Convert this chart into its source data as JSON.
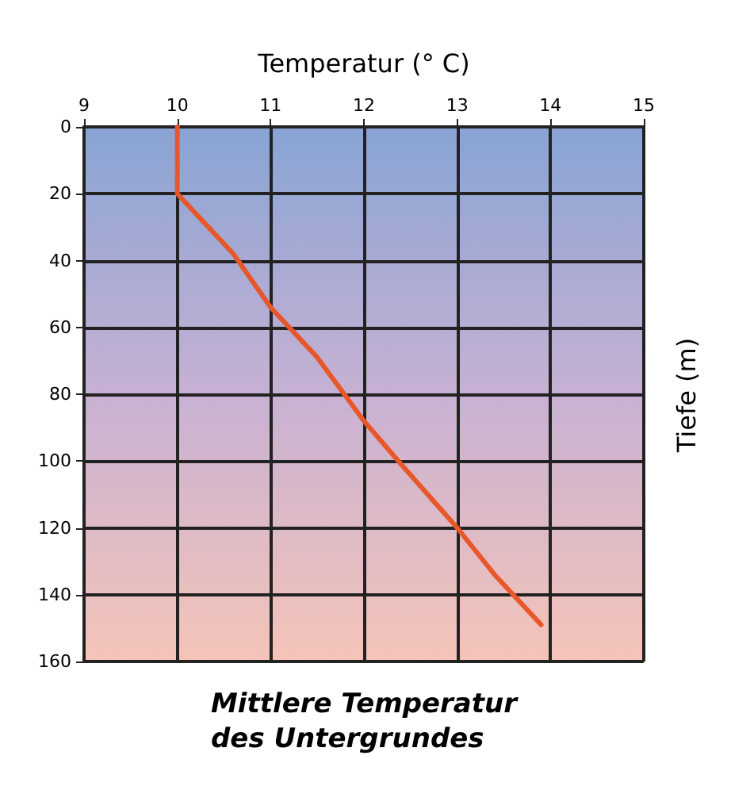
{
  "chart_data": {
    "type": "line",
    "title": "Mittlere Temperatur des Untergrundes",
    "xlabel": "Temperatur (° C)",
    "ylabel": "Tiefe (m)",
    "x": [
      10,
      10,
      10.3,
      10.6,
      11,
      11.5,
      12,
      12.4,
      13,
      13.4,
      13.9
    ],
    "series": [
      {
        "color": "#e8572a",
        "values": [
          0,
          20,
          29,
          38,
          54,
          69,
          88,
          101,
          120,
          134,
          149
        ]
      }
    ],
    "xlim": [
      9,
      15
    ],
    "xticks": [
      9,
      10,
      11,
      12,
      13,
      14,
      15
    ],
    "ylim": [
      160,
      0
    ],
    "yticks": [
      0,
      20,
      40,
      60,
      80,
      100,
      120,
      140,
      160
    ],
    "grid": true,
    "marker": "none",
    "line_style": "solid"
  }
}
